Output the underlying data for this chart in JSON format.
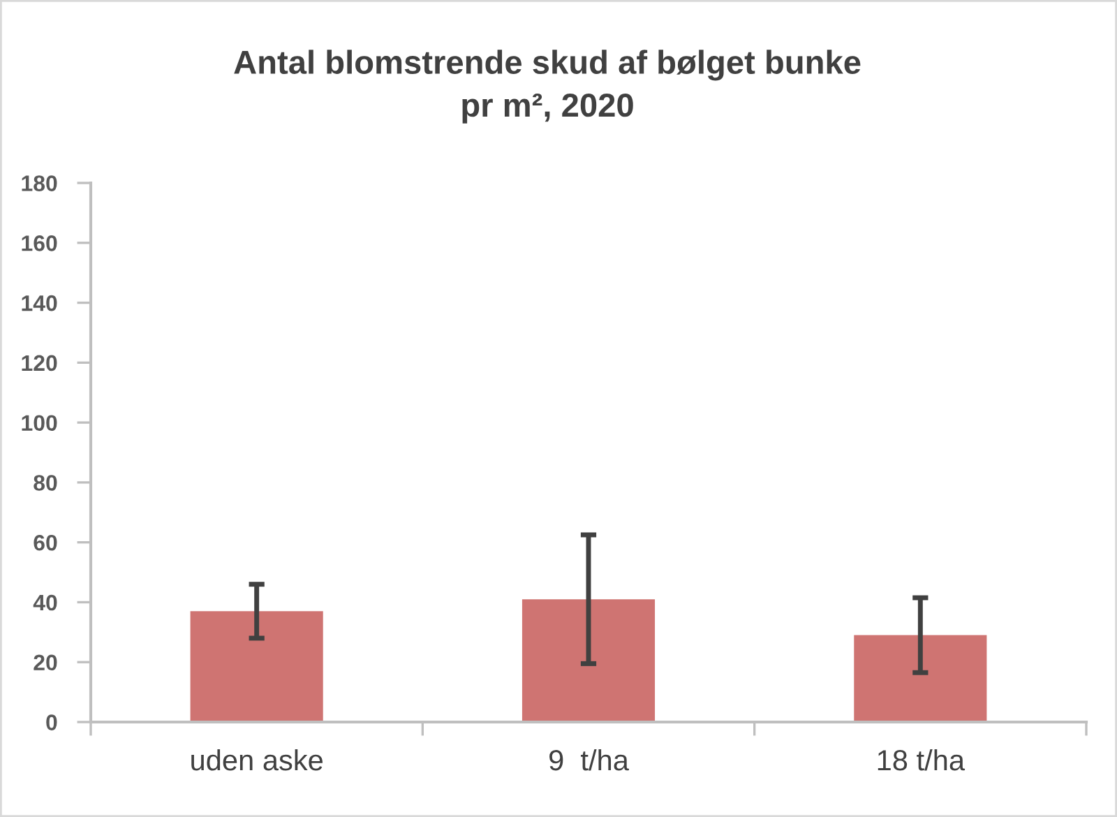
{
  "chart_data": {
    "type": "bar",
    "title": "Antal blomstrende skud af bølget bunke\npr m², 2020",
    "categories": [
      "uden aske",
      "9  t/ha",
      "18 t/ha"
    ],
    "values": [
      37,
      41,
      29
    ],
    "errors": [
      9,
      21.5,
      12.5
    ],
    "color": "#cf7472",
    "ylim": [
      0,
      180
    ],
    "yticks": [
      0,
      20,
      40,
      60,
      80,
      100,
      120,
      140,
      160,
      180
    ]
  }
}
